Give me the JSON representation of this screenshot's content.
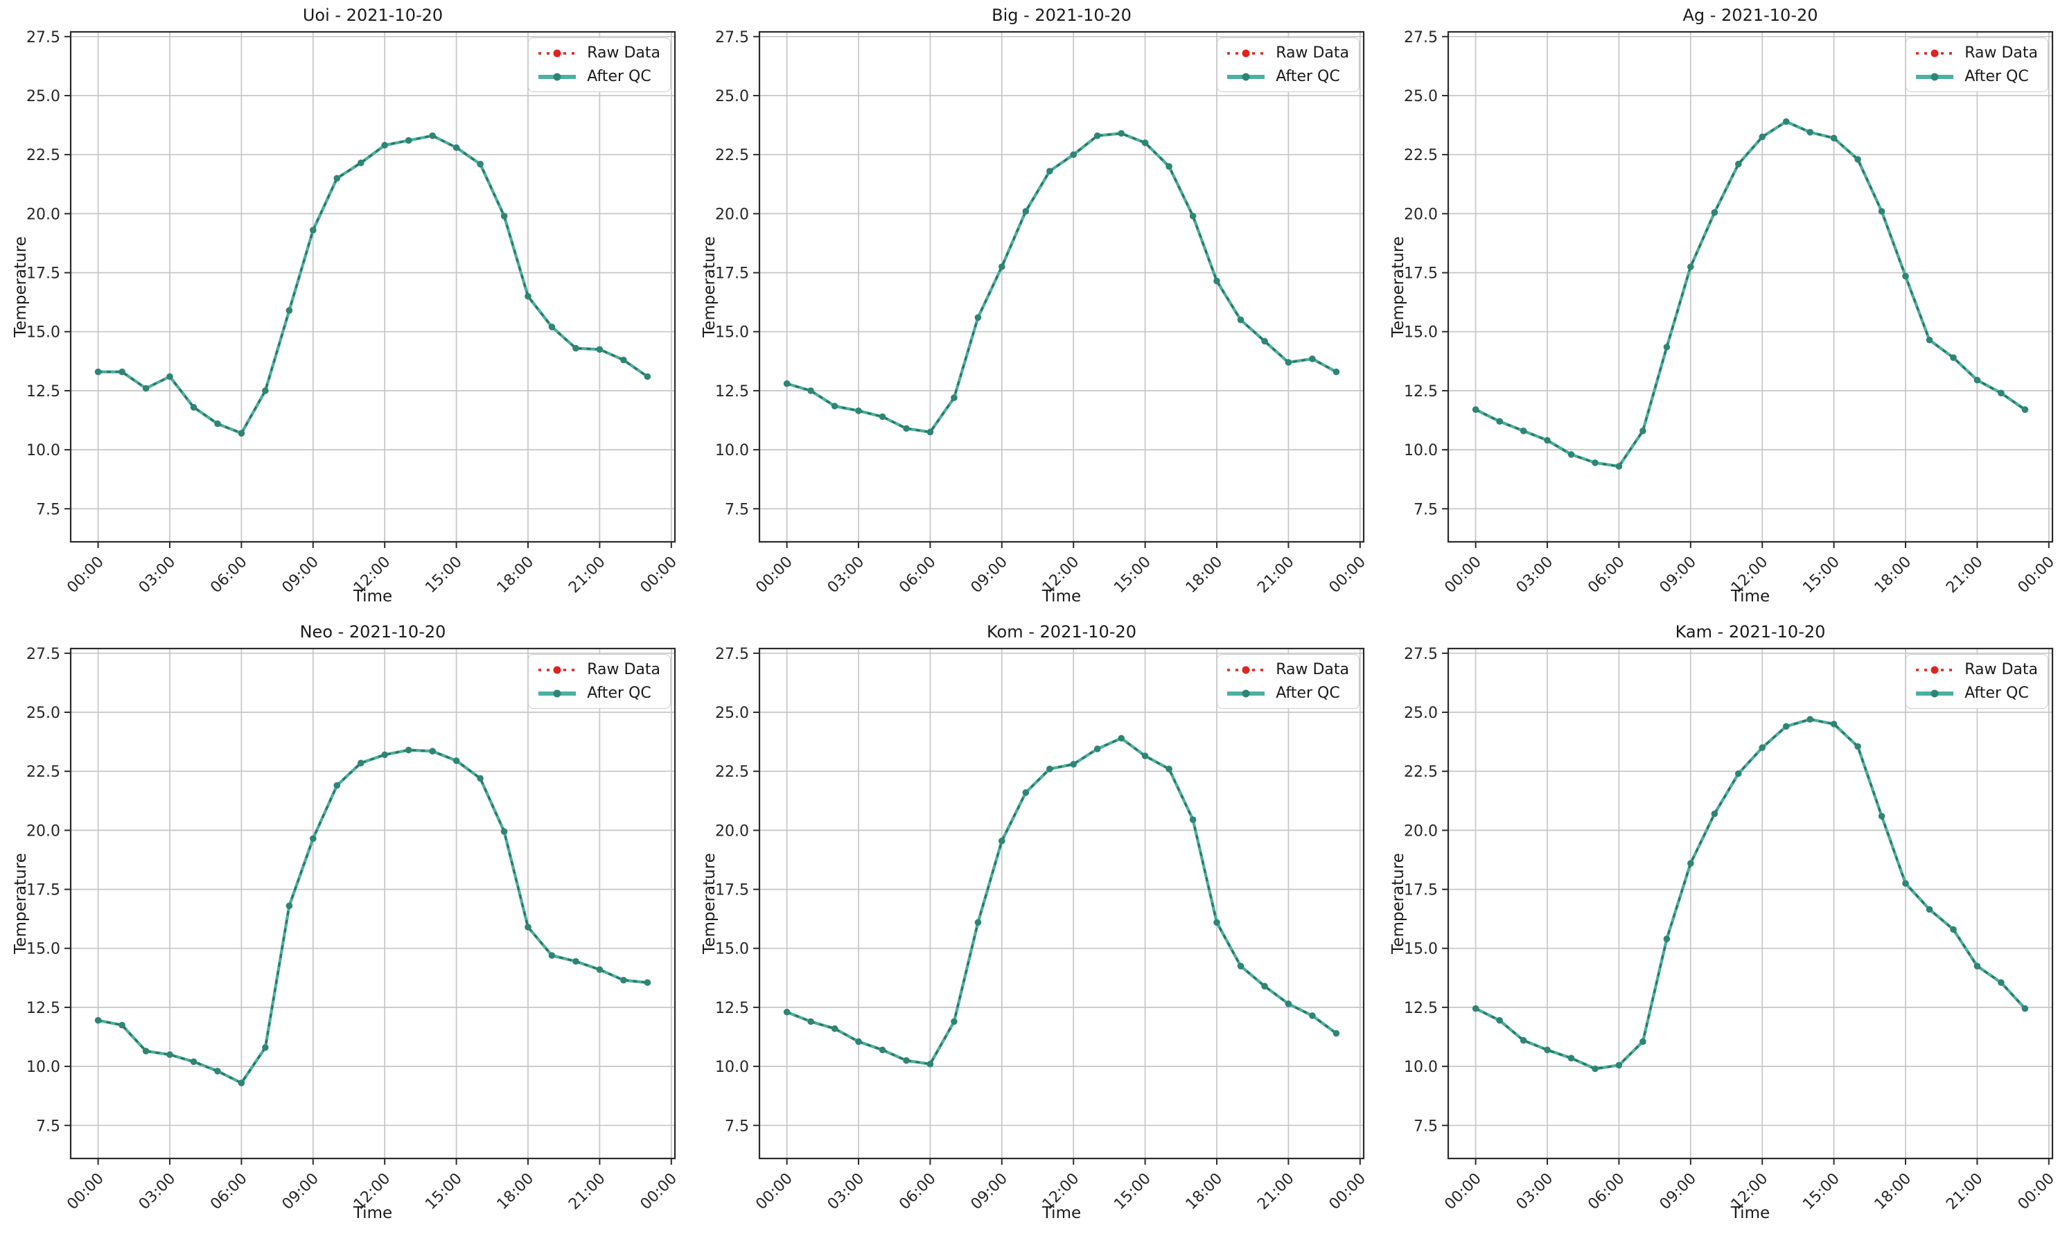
{
  "page": {
    "background": "#ffffff"
  },
  "chart_common": {
    "type": "line",
    "xlabel": "Time",
    "ylabel": "Temperature",
    "date": "2021-10-20",
    "x_hours": [
      0,
      1,
      2,
      3,
      4,
      5,
      6,
      7,
      8,
      9,
      10,
      11,
      12,
      13,
      14,
      15,
      16,
      17,
      18,
      19,
      20,
      21,
      22,
      23
    ],
    "xtick_hours": [
      0,
      3,
      6,
      9,
      12,
      15,
      18,
      21,
      24
    ],
    "xtick_labels": [
      "00:00",
      "03:00",
      "06:00",
      "09:00",
      "12:00",
      "15:00",
      "18:00",
      "21:00",
      "00:00"
    ],
    "xtick_rotation_deg": 45,
    "yticks": [
      7.5,
      10.0,
      12.5,
      15.0,
      17.5,
      20.0,
      22.5,
      25.0,
      27.5
    ],
    "ylim": [
      6.1,
      27.7
    ],
    "xlim": [
      -1.15,
      24.15
    ],
    "grid": true,
    "legend_position": "upper right",
    "legend": [
      {
        "label": "Raw Data",
        "color": "#e02420",
        "style": "dotted line with circle marker"
      },
      {
        "label": "After QC",
        "color": "#4ab0a0",
        "marker_color": "#2e8575",
        "dash_overlay_color": "#2f705f",
        "style": "thick solid line with circle markers"
      }
    ],
    "series_note": "Raw Data and After QC curves overlap exactly in every chart; values below apply to both series."
  },
  "chart_data": [
    {
      "type": "line",
      "station": "Uoi",
      "title": "Uoi - 2021-10-20",
      "values": [
        13.3,
        13.3,
        12.6,
        13.1,
        11.8,
        11.1,
        10.7,
        12.5,
        15.9,
        19.3,
        21.5,
        22.15,
        22.9,
        23.1,
        23.3,
        22.8,
        22.1,
        19.9,
        16.5,
        15.2,
        14.3,
        14.25,
        13.8,
        13.1
      ]
    },
    {
      "type": "line",
      "station": "Big",
      "title": "Big - 2021-10-20",
      "values": [
        12.8,
        12.5,
        11.85,
        11.65,
        11.4,
        10.9,
        10.75,
        12.2,
        15.6,
        17.75,
        20.1,
        21.8,
        22.5,
        23.3,
        23.4,
        23.0,
        22.0,
        19.9,
        17.15,
        15.5,
        14.6,
        13.7,
        13.85,
        13.3
      ]
    },
    {
      "type": "line",
      "station": "Ag",
      "title": "Ag - 2021-10-20",
      "values": [
        11.7,
        11.2,
        10.8,
        10.4,
        9.8,
        9.45,
        9.3,
        10.8,
        14.35,
        17.75,
        20.05,
        22.1,
        23.25,
        23.9,
        23.45,
        23.2,
        22.3,
        20.1,
        17.35,
        14.65,
        13.9,
        12.95,
        12.4,
        11.7
      ]
    },
    {
      "type": "line",
      "station": "Neo",
      "title": "Neo - 2021-10-20",
      "values": [
        11.95,
        11.75,
        10.65,
        10.5,
        10.2,
        9.8,
        9.3,
        10.8,
        16.8,
        19.65,
        21.9,
        22.85,
        23.2,
        23.4,
        23.35,
        22.95,
        22.2,
        19.95,
        15.9,
        14.7,
        14.45,
        14.1,
        13.65,
        13.55
      ]
    },
    {
      "type": "line",
      "station": "Kom",
      "title": "Kom - 2021-10-20",
      "values": [
        12.3,
        11.9,
        11.6,
        11.05,
        10.7,
        10.25,
        10.1,
        11.9,
        16.1,
        19.55,
        21.6,
        22.6,
        22.8,
        23.45,
        23.9,
        23.15,
        22.6,
        20.45,
        16.1,
        14.25,
        13.4,
        12.65,
        12.15,
        11.4
      ]
    },
    {
      "type": "line",
      "station": "Kam",
      "title": "Kam - 2021-10-20",
      "values": [
        12.45,
        11.95,
        11.1,
        10.7,
        10.35,
        9.9,
        10.05,
        11.05,
        15.4,
        18.6,
        20.7,
        22.4,
        23.5,
        24.4,
        24.7,
        24.5,
        23.55,
        20.6,
        17.75,
        16.65,
        15.8,
        14.25,
        13.55,
        12.45
      ]
    }
  ]
}
